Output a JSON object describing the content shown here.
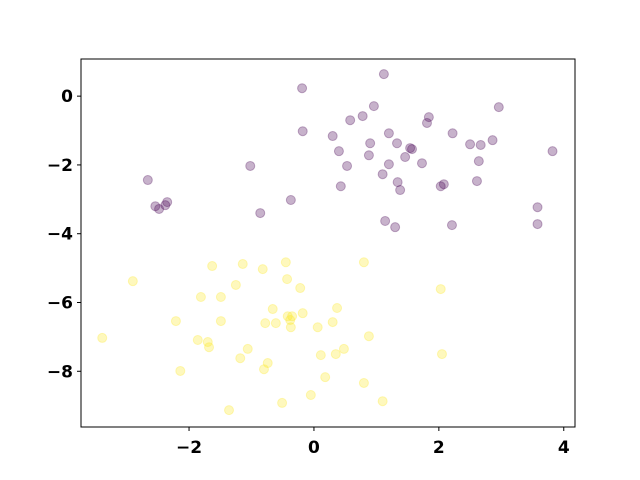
{
  "chart_data": {
    "type": "scatter",
    "xlim": [
      -3.73,
      4.18
    ],
    "ylim": [
      -9.62,
      1.08
    ],
    "xticks": [
      {
        "value": -2,
        "label": "−2"
      },
      0,
      {
        "value": 2,
        "label": "2"
      },
      {
        "value": 4,
        "label": "4"
      }
    ],
    "yticks": [
      0,
      {
        "value": -2,
        "label": "−2"
      },
      {
        "value": -4,
        "label": "−4"
      },
      {
        "value": -6,
        "label": "−6"
      },
      {
        "value": -8,
        "label": "−8"
      }
    ],
    "series": [
      {
        "color": "#440154",
        "x": [
          1.12,
          -0.19,
          0.96,
          2.96,
          1.84,
          1.81,
          0.78,
          0.58,
          -0.18,
          0.3,
          1.2,
          2.22,
          2.5,
          2.67,
          2.86,
          0.9,
          1.33,
          0.4,
          0.88,
          1.54,
          1.57,
          3.82,
          1.46,
          2.64,
          1.73,
          1.2,
          0.53,
          -1.02,
          1.1,
          -2.66,
          1.34,
          2.61,
          2.08,
          0.43,
          1.38,
          2.03,
          -0.37,
          -2.35,
          -2.38,
          -2.54,
          -2.48,
          3.58,
          -0.86,
          1.14,
          3.58,
          1.3,
          2.21
        ],
        "values": [
          0.64,
          0.23,
          -0.29,
          -0.32,
          -0.61,
          -0.78,
          -0.58,
          -0.7,
          -1.02,
          -1.16,
          -1.08,
          -1.08,
          -1.4,
          -1.42,
          -1.28,
          -1.37,
          -1.37,
          -1.6,
          -1.72,
          -1.51,
          -1.54,
          -1.6,
          -1.77,
          -1.89,
          -1.95,
          -1.98,
          -2.03,
          -2.03,
          -2.27,
          -2.44,
          -2.5,
          -2.47,
          -2.56,
          -2.62,
          -2.73,
          -2.62,
          -3.02,
          -3.08,
          -3.17,
          -3.2,
          -3.28,
          -3.23,
          -3.4,
          -3.63,
          -3.72,
          -3.81,
          -3.75
        ]
      },
      {
        "color": "#fde725",
        "x": [
          -3.39,
          -2.9,
          -2.21,
          -2.14,
          -1.81,
          -1.86,
          -1.7,
          -1.68,
          -1.63,
          -1.49,
          -1.49,
          -1.36,
          -1.25,
          -1.18,
          -1.14,
          -1.06,
          -0.82,
          -0.78,
          -0.8,
          -0.74,
          -0.66,
          -0.61,
          -0.51,
          -0.45,
          -0.43,
          -0.42,
          -0.38,
          -0.37,
          -0.35,
          -0.22,
          -0.18,
          -0.05,
          0.06,
          0.11,
          0.18,
          0.3,
          0.37,
          0.35,
          0.48,
          0.8,
          0.8,
          0.88,
          1.1,
          2.03,
          2.05
        ],
        "values": [
          -7.03,
          -5.38,
          -6.54,
          -7.99,
          -5.84,
          -7.09,
          -7.15,
          -7.3,
          -4.94,
          -5.84,
          -6.54,
          -9.13,
          -5.49,
          -7.62,
          -4.88,
          -7.35,
          -5.03,
          -6.6,
          -7.94,
          -7.76,
          -6.19,
          -6.6,
          -8.92,
          -4.83,
          -5.32,
          -6.4,
          -6.51,
          -6.72,
          -6.4,
          -5.58,
          -6.31,
          -8.69,
          -6.72,
          -7.53,
          -8.17,
          -6.57,
          -6.16,
          -7.5,
          -7.35,
          -4.83,
          -8.34,
          -6.98,
          -8.87,
          -5.61,
          -7.5
        ]
      }
    ]
  }
}
